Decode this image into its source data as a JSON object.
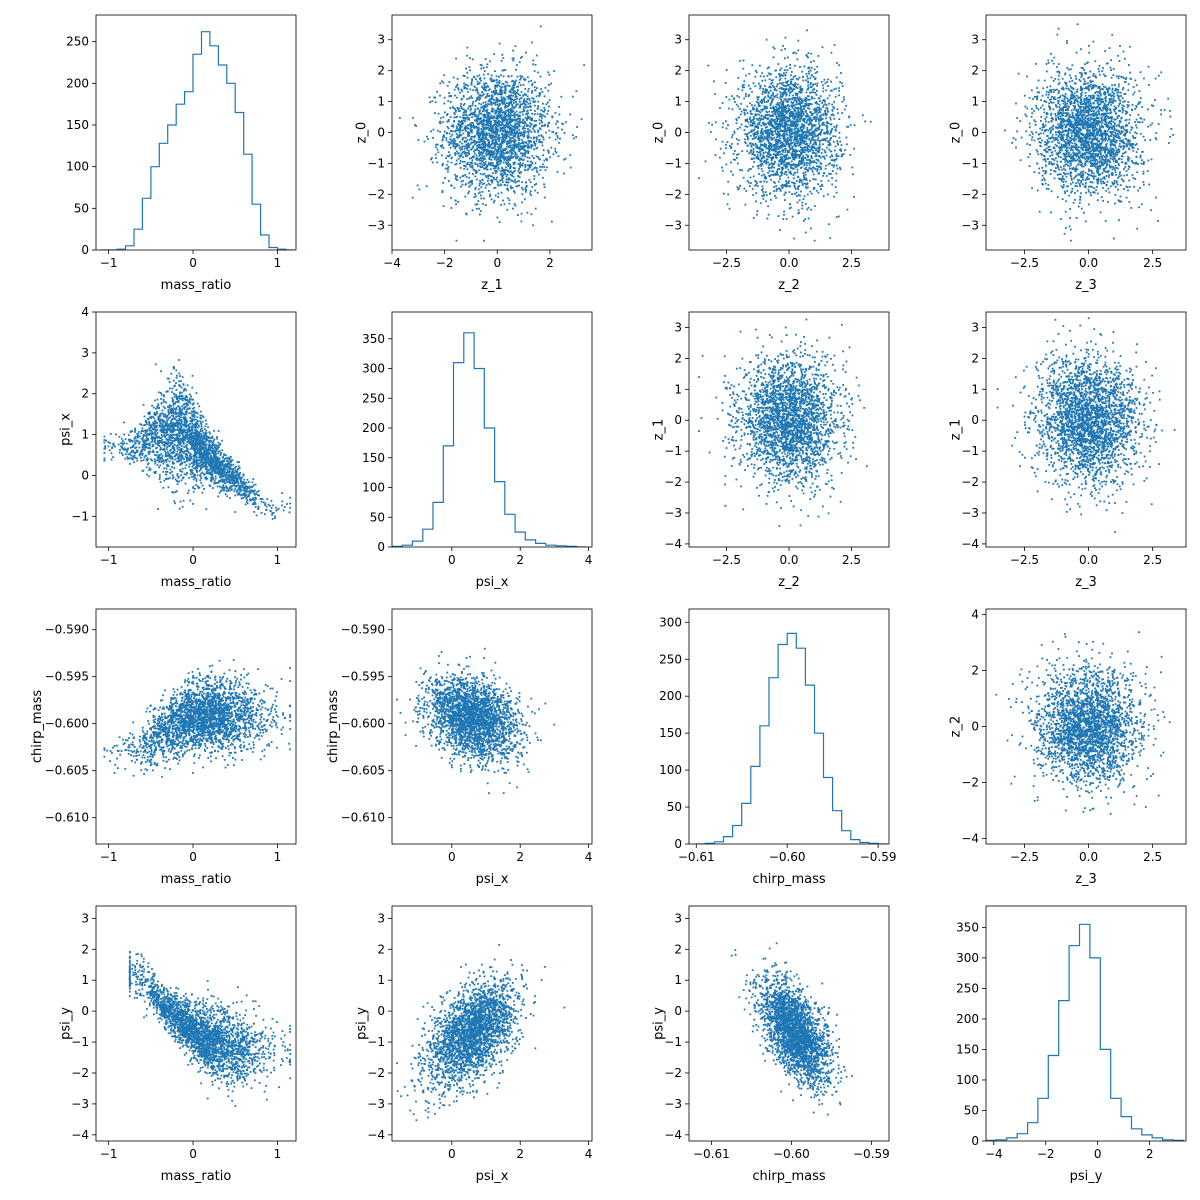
{
  "style": {
    "series_color": "#1f77b4",
    "axis_color": "#000000",
    "background": "#ffffff"
  },
  "chart_data": [
    {
      "type": "histogram",
      "row": 0,
      "col": 0,
      "xlabel": "mass_ratio",
      "ylabel": "",
      "xlim": [
        -1.15,
        1.22
      ],
      "ylim": [
        0,
        282
      ],
      "xticks": [
        -1,
        0,
        1
      ],
      "xtick_labels": [
        "−1",
        "0",
        "1"
      ],
      "yticks": [
        0,
        50,
        100,
        150,
        200,
        250
      ],
      "ytick_labels": [
        "0",
        "50",
        "100",
        "150",
        "200",
        "250"
      ],
      "x": [
        -1.05,
        -0.95,
        -0.85,
        -0.75,
        -0.65,
        -0.55,
        -0.45,
        -0.35,
        -0.25,
        -0.15,
        -0.05,
        0.05,
        0.15,
        0.25,
        0.35,
        0.45,
        0.55,
        0.65,
        0.75,
        0.85,
        0.95,
        1.05,
        1.15
      ],
      "values": [
        0,
        0,
        1,
        5,
        25,
        62,
        100,
        128,
        150,
        175,
        190,
        235,
        262,
        245,
        222,
        200,
        165,
        115,
        55,
        18,
        3,
        1,
        0
      ]
    },
    {
      "type": "scatter",
      "row": 0,
      "col": 1,
      "xlabel": "z_1",
      "ylabel": "z_0",
      "xlim": [
        -4.0,
        3.6
      ],
      "ylim": [
        -3.8,
        3.8
      ],
      "xticks": [
        -4,
        -2,
        0,
        2
      ],
      "xtick_labels": [
        "−4",
        "−2",
        "0",
        "2"
      ],
      "yticks": [
        -3,
        -2,
        -1,
        0,
        1,
        2,
        3
      ],
      "ytick_labels": [
        "−3",
        "−2",
        "−1",
        "0",
        "1",
        "2",
        "3"
      ],
      "distribution": {
        "mean_x": 0.0,
        "sd_x": 1.0,
        "mean_y": 0.0,
        "sd_y": 1.0,
        "correlation": 0.0,
        "clip_x": [
          -3.7,
          3.3
        ],
        "clip_y": [
          -3.5,
          3.5
        ]
      }
    },
    {
      "type": "scatter",
      "row": 0,
      "col": 2,
      "xlabel": "z_2",
      "ylabel": "z_0",
      "xlim": [
        -4.0,
        4.0
      ],
      "ylim": [
        -3.8,
        3.8
      ],
      "xticks": [
        -2.5,
        0,
        2.5
      ],
      "xtick_labels": [
        "−2.5",
        "0.0",
        "2.5"
      ],
      "yticks": [
        -3,
        -2,
        -1,
        0,
        1,
        2,
        3
      ],
      "ytick_labels": [
        "−3",
        "−2",
        "−1",
        "0",
        "1",
        "2",
        "3"
      ],
      "distribution": {
        "mean_x": 0.0,
        "sd_x": 1.0,
        "mean_y": 0.0,
        "sd_y": 1.0,
        "correlation": 0.0,
        "clip_x": [
          -3.6,
          3.7
        ],
        "clip_y": [
          -3.5,
          3.5
        ]
      }
    },
    {
      "type": "scatter",
      "row": 0,
      "col": 3,
      "xlabel": "z_3",
      "ylabel": "z_0",
      "xlim": [
        -4.0,
        3.8
      ],
      "ylim": [
        -3.8,
        3.8
      ],
      "xticks": [
        -2.5,
        0,
        2.5
      ],
      "xtick_labels": [
        "−2.5",
        "0.0",
        "2.5"
      ],
      "yticks": [
        -3,
        -2,
        -1,
        0,
        1,
        2,
        3
      ],
      "ytick_labels": [
        "−3",
        "−2",
        "−1",
        "0",
        "1",
        "2",
        "3"
      ],
      "distribution": {
        "mean_x": 0.0,
        "sd_x": 1.0,
        "mean_y": 0.0,
        "sd_y": 1.0,
        "correlation": 0.0,
        "clip_x": [
          -3.6,
          3.4
        ],
        "clip_y": [
          -3.5,
          3.5
        ]
      }
    },
    {
      "type": "scatter",
      "row": 1,
      "col": 0,
      "xlabel": "mass_ratio",
      "ylabel": "psi_x",
      "xlim": [
        -1.15,
        1.22
      ],
      "ylim": [
        -1.75,
        4.0
      ],
      "xticks": [
        -1,
        0,
        1
      ],
      "xtick_labels": [
        "−1",
        "0",
        "1"
      ],
      "yticks": [
        -1,
        0,
        1,
        2,
        3,
        4
      ],
      "ytick_labels": [
        "−1",
        "0",
        "1",
        "2",
        "3",
        "4"
      ],
      "profile": {
        "x": [
          -0.9,
          -0.6,
          -0.3,
          -0.2,
          0.0,
          0.2,
          0.4,
          0.6,
          0.8,
          1.0
        ],
        "center": [
          0.65,
          0.8,
          1.1,
          1.15,
          0.85,
          0.45,
          0.05,
          -0.3,
          -0.65,
          -0.8
        ],
        "spread": [
          0.15,
          0.3,
          0.6,
          0.65,
          0.5,
          0.3,
          0.22,
          0.2,
          0.18,
          0.15
        ],
        "x_mean": 0.0,
        "x_sd": 0.38,
        "x_clip": [
          -1.05,
          1.15
        ]
      }
    },
    {
      "type": "histogram",
      "row": 1,
      "col": 1,
      "xlabel": "psi_x",
      "ylabel": "",
      "xlim": [
        -1.75,
        4.1
      ],
      "ylim": [
        0,
        395
      ],
      "xticks": [
        0,
        2,
        4
      ],
      "xtick_labels": [
        "0",
        "2",
        "4"
      ],
      "yticks": [
        0,
        50,
        100,
        150,
        200,
        250,
        300,
        350
      ],
      "ytick_labels": [
        "0",
        "50",
        "100",
        "150",
        "200",
        "250",
        "300",
        "350"
      ],
      "x": [
        -1.6,
        -1.3,
        -1.0,
        -0.7,
        -0.4,
        -0.1,
        0.2,
        0.5,
        0.8,
        1.1,
        1.4,
        1.7,
        2.0,
        2.3,
        2.6,
        2.9,
        3.2,
        3.5,
        3.8
      ],
      "values": [
        1,
        3,
        10,
        30,
        75,
        170,
        310,
        360,
        300,
        200,
        110,
        55,
        25,
        12,
        6,
        3,
        2,
        1,
        0
      ]
    },
    {
      "type": "scatter",
      "row": 1,
      "col": 2,
      "xlabel": "z_2",
      "ylabel": "z_1",
      "xlim": [
        -4.0,
        4.0
      ],
      "ylim": [
        -4.1,
        3.5
      ],
      "xticks": [
        -2.5,
        0,
        2.5
      ],
      "xtick_labels": [
        "−2.5",
        "0.0",
        "2.5"
      ],
      "yticks": [
        -4,
        -3,
        -2,
        -1,
        0,
        1,
        2,
        3
      ],
      "ytick_labels": [
        "−4",
        "−3",
        "−2",
        "−1",
        "0",
        "1",
        "2",
        "3"
      ],
      "distribution": {
        "mean_x": 0.0,
        "sd_x": 1.0,
        "mean_y": 0.0,
        "sd_y": 1.0,
        "correlation": 0.0,
        "clip_x": [
          -3.6,
          3.7
        ],
        "clip_y": [
          -3.8,
          3.3
        ]
      }
    },
    {
      "type": "scatter",
      "row": 1,
      "col": 3,
      "xlabel": "z_3",
      "ylabel": "z_1",
      "xlim": [
        -4.0,
        3.8
      ],
      "ylim": [
        -4.1,
        3.5
      ],
      "xticks": [
        -2.5,
        0,
        2.5
      ],
      "xtick_labels": [
        "−2.5",
        "0.0",
        "2.5"
      ],
      "yticks": [
        -4,
        -3,
        -2,
        -1,
        0,
        1,
        2,
        3
      ],
      "ytick_labels": [
        "−4",
        "−3",
        "−2",
        "−1",
        "0",
        "1",
        "2",
        "3"
      ],
      "distribution": {
        "mean_x": 0.0,
        "sd_x": 1.0,
        "mean_y": 0.0,
        "sd_y": 1.0,
        "correlation": 0.0,
        "clip_x": [
          -3.6,
          3.4
        ],
        "clip_y": [
          -3.8,
          3.3
        ]
      }
    },
    {
      "type": "scatter",
      "row": 2,
      "col": 0,
      "xlabel": "mass_ratio",
      "ylabel": "chirp_mass",
      "xlim": [
        -1.15,
        1.22
      ],
      "ylim": [
        -0.6128,
        -0.5878
      ],
      "xticks": [
        -1,
        0,
        1
      ],
      "xtick_labels": [
        "−1",
        "0",
        "1"
      ],
      "yticks": [
        -0.61,
        -0.605,
        -0.6,
        -0.595,
        -0.59
      ],
      "ytick_labels": [
        "−0.610",
        "−0.605",
        "−0.600",
        "−0.595",
        "−0.590"
      ],
      "profile": {
        "x": [
          -1.0,
          -0.6,
          -0.4,
          -0.2,
          0.0,
          0.3,
          0.6,
          0.9
        ],
        "center": [
          -0.6035,
          -0.6025,
          -0.601,
          -0.6,
          -0.5993,
          -0.599,
          -0.599,
          -0.5995
        ],
        "spread": [
          0.0008,
          0.0012,
          0.0016,
          0.0018,
          0.0019,
          0.0019,
          0.0019,
          0.0017
        ],
        "x_mean": 0.1,
        "x_sd": 0.38,
        "x_clip": [
          -1.05,
          1.15
        ]
      }
    },
    {
      "type": "scatter",
      "row": 2,
      "col": 1,
      "xlabel": "psi_x",
      "ylabel": "chirp_mass",
      "xlim": [
        -1.75,
        4.1
      ],
      "ylim": [
        -0.6128,
        -0.5878
      ],
      "xticks": [
        0,
        2,
        4
      ],
      "xtick_labels": [
        "0",
        "2",
        "4"
      ],
      "yticks": [
        -0.61,
        -0.605,
        -0.6,
        -0.595,
        -0.59
      ],
      "ytick_labels": [
        "−0.610",
        "−0.605",
        "−0.600",
        "−0.595",
        "−0.590"
      ],
      "distribution": {
        "mean_x": 0.6,
        "sd_x": 0.65,
        "mean_y": -0.5995,
        "sd_y": 0.0022,
        "correlation": -0.3,
        "clip_x": [
          -1.6,
          3.8
        ],
        "clip_y": [
          -0.609,
          -0.59
        ]
      }
    },
    {
      "type": "histogram",
      "row": 2,
      "col": 2,
      "xlabel": "chirp_mass",
      "ylabel": "",
      "xlim": [
        -0.6108,
        -0.5888
      ],
      "ylim": [
        0,
        318
      ],
      "xticks": [
        -0.61,
        -0.6,
        -0.59
      ],
      "xtick_labels": [
        "−0.61",
        "−0.60",
        "−0.59"
      ],
      "yticks": [
        0,
        50,
        100,
        150,
        200,
        250,
        300
      ],
      "ytick_labels": [
        "0",
        "50",
        "100",
        "150",
        "200",
        "250",
        "300"
      ],
      "x": [
        -0.6095,
        -0.6085,
        -0.6075,
        -0.6065,
        -0.6055,
        -0.6045,
        -0.6035,
        -0.6025,
        -0.6015,
        -0.6005,
        -0.5995,
        -0.5985,
        -0.5975,
        -0.5965,
        -0.5955,
        -0.5945,
        -0.5935,
        -0.5925,
        -0.5915,
        -0.5905,
        -0.5895
      ],
      "values": [
        0,
        1,
        3,
        10,
        25,
        55,
        105,
        160,
        225,
        270,
        285,
        265,
        215,
        150,
        90,
        45,
        18,
        6,
        2,
        1,
        0
      ]
    },
    {
      "type": "scatter",
      "row": 2,
      "col": 3,
      "xlabel": "z_3",
      "ylabel": "z_2",
      "xlim": [
        -4.0,
        3.8
      ],
      "ylim": [
        -4.2,
        4.2
      ],
      "xticks": [
        -2.5,
        0,
        2.5
      ],
      "xtick_labels": [
        "−2.5",
        "0.0",
        "2.5"
      ],
      "yticks": [
        -4,
        -2,
        0,
        2,
        4
      ],
      "ytick_labels": [
        "−4",
        "−2",
        "0",
        "2",
        "4"
      ],
      "distribution": {
        "mean_x": 0.0,
        "sd_x": 1.0,
        "mean_y": 0.0,
        "sd_y": 1.0,
        "correlation": 0.0,
        "clip_x": [
          -3.6,
          3.4
        ],
        "clip_y": [
          -3.8,
          3.8
        ]
      }
    },
    {
      "type": "scatter",
      "row": 3,
      "col": 0,
      "xlabel": "mass_ratio",
      "ylabel": "psi_y",
      "xlim": [
        -1.15,
        1.22
      ],
      "ylim": [
        -4.2,
        3.4
      ],
      "xticks": [
        -1,
        0,
        1
      ],
      "xtick_labels": [
        "−1",
        "0",
        "1"
      ],
      "yticks": [
        -4,
        -3,
        -2,
        -1,
        0,
        1,
        2,
        3
      ],
      "ytick_labels": [
        "−4",
        "−3",
        "−2",
        "−1",
        "0",
        "1",
        "2",
        "3"
      ],
      "profile": {
        "x": [
          -0.75,
          -0.55,
          -0.4,
          -0.2,
          0.0,
          0.2,
          0.5,
          0.8
        ],
        "center": [
          1.2,
          0.9,
          0.3,
          -0.2,
          -0.7,
          -1.0,
          -1.3,
          -1.25
        ],
        "spread": [
          0.35,
          0.4,
          0.3,
          0.35,
          0.45,
          0.55,
          0.6,
          0.5
        ],
        "x_mean": 0.1,
        "x_sd": 0.38,
        "x_clip": [
          -0.75,
          1.15
        ]
      }
    },
    {
      "type": "scatter",
      "row": 3,
      "col": 1,
      "xlabel": "psi_x",
      "ylabel": "psi_y",
      "xlim": [
        -1.75,
        4.1
      ],
      "ylim": [
        -4.2,
        3.4
      ],
      "xticks": [
        0,
        2,
        4
      ],
      "xtick_labels": [
        "0",
        "2",
        "4"
      ],
      "yticks": [
        -4,
        -3,
        -2,
        -1,
        0,
        1,
        2,
        3
      ],
      "ytick_labels": [
        "−4",
        "−3",
        "−2",
        "−1",
        "0",
        "1",
        "2",
        "3"
      ],
      "distribution": {
        "mean_x": 0.6,
        "sd_x": 0.65,
        "mean_y": -0.7,
        "sd_y": 0.85,
        "correlation": 0.5,
        "clip_x": [
          -1.6,
          3.8
        ],
        "clip_y": [
          -3.9,
          3.1
        ]
      }
    },
    {
      "type": "scatter",
      "row": 3,
      "col": 2,
      "xlabel": "chirp_mass",
      "ylabel": "psi_y",
      "xlim": [
        -0.6128,
        -0.5878
      ],
      "ylim": [
        -4.2,
        3.4
      ],
      "xticks": [
        -0.61,
        -0.6,
        -0.59
      ],
      "xtick_labels": [
        "−0.61",
        "−0.60",
        "−0.59"
      ],
      "yticks": [
        -4,
        -3,
        -2,
        -1,
        0,
        1,
        2,
        3
      ],
      "ytick_labels": [
        "−4",
        "−3",
        "−2",
        "−1",
        "0",
        "1",
        "2",
        "3"
      ],
      "distribution": {
        "mean_x": -0.5995,
        "sd_x": 0.0022,
        "mean_y": -0.7,
        "sd_y": 0.85,
        "correlation": -0.6,
        "clip_x": [
          -0.608,
          -0.5895
        ],
        "clip_y": [
          -3.6,
          3.0
        ]
      }
    },
    {
      "type": "histogram",
      "row": 3,
      "col": 3,
      "xlabel": "psi_y",
      "ylabel": "",
      "xlim": [
        -4.3,
        3.4
      ],
      "ylim": [
        0,
        385
      ],
      "xticks": [
        -4,
        -2,
        0,
        2
      ],
      "xtick_labels": [
        "−4",
        "−2",
        "0",
        "2"
      ],
      "yticks": [
        0,
        50,
        100,
        150,
        200,
        250,
        300,
        350
      ],
      "ytick_labels": [
        "0",
        "50",
        "100",
        "150",
        "200",
        "250",
        "300",
        "350"
      ],
      "x": [
        -4.1,
        -3.7,
        -3.3,
        -2.9,
        -2.5,
        -2.1,
        -1.7,
        -1.3,
        -0.9,
        -0.5,
        -0.1,
        0.3,
        0.7,
        1.1,
        1.5,
        1.9,
        2.3,
        2.7,
        3.1
      ],
      "values": [
        1,
        2,
        5,
        12,
        30,
        70,
        140,
        230,
        320,
        355,
        300,
        150,
        70,
        40,
        20,
        10,
        5,
        2,
        1
      ]
    }
  ]
}
